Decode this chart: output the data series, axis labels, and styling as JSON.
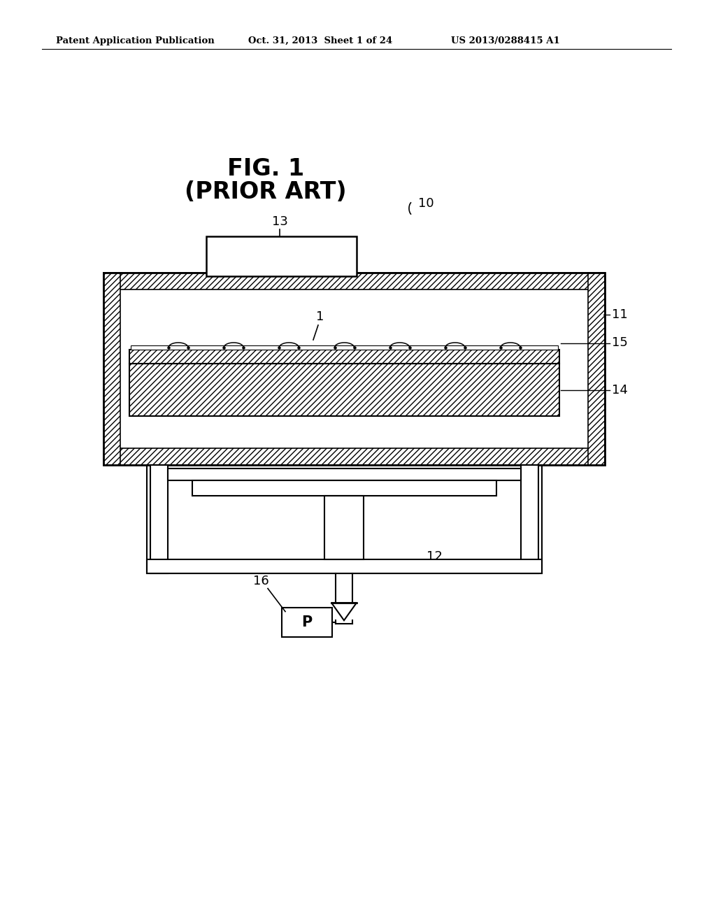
{
  "bg_color": "#ffffff",
  "line_color": "#000000",
  "header_text1": "Patent Application Publication",
  "header_text2": "Oct. 31, 2013  Sheet 1 of 24",
  "header_text3": "US 2013/0288415 A1",
  "fig_title1": "FIG. 1",
  "fig_title2": "(PRIOR ART)",
  "label_10": "10",
  "label_11": "11",
  "label_12": "12",
  "label_13": "13",
  "label_14": "14",
  "label_15": "15",
  "label_16": "16",
  "label_1": "1",
  "label_P": "P"
}
